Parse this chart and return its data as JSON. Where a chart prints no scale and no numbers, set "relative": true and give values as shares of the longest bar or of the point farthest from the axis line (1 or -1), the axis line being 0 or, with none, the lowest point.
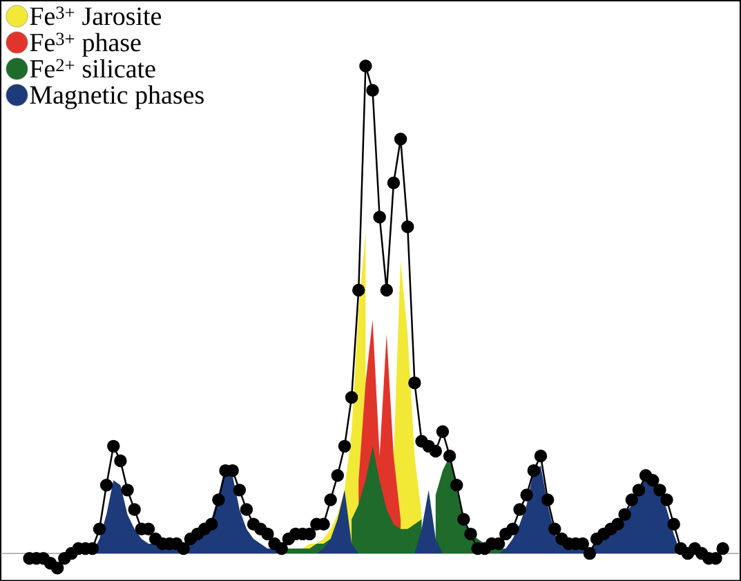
{
  "chart_data": {
    "type": "area",
    "relative": true,
    "legend": "top left",
    "categories": [
      null,
      null,
      null,
      null,
      null,
      null,
      null,
      null,
      null,
      null,
      null,
      null,
      null,
      null,
      null,
      null,
      null,
      null,
      null,
      null,
      null,
      null,
      null,
      null,
      null,
      null,
      null,
      null,
      null,
      null,
      null,
      null,
      null,
      null,
      null,
      null,
      null,
      null,
      null,
      null,
      null,
      null,
      null,
      null,
      null,
      null,
      null,
      null,
      null,
      null,
      null,
      null,
      null,
      null,
      null,
      null,
      null,
      null,
      null,
      null,
      null,
      null,
      null,
      null,
      null,
      null,
      null,
      null,
      null,
      null,
      null,
      null,
      null,
      null,
      null,
      null,
      null,
      null,
      null,
      null,
      null,
      null,
      null,
      null,
      null,
      null,
      null,
      null,
      null,
      null,
      null,
      null,
      null,
      null,
      null,
      null,
      null,
      null,
      null,
      null
    ],
    "series": [
      {
        "name": "Fe$^{3+}$ Jarosite",
        "color": "#f2e936",
        "values": [
          0,
          0,
          0,
          0,
          0,
          0,
          0,
          0,
          0,
          0,
          0,
          0,
          0,
          0,
          0,
          0,
          0,
          0,
          0,
          0,
          0,
          0,
          0,
          0,
          0,
          0,
          0,
          0,
          0,
          0,
          0,
          0,
          0,
          0,
          0,
          0,
          0,
          0.01,
          0.01,
          0.01,
          0.02,
          0.02,
          0.03,
          0.05,
          0.08,
          0.13,
          0.25,
          0.5,
          0.66,
          null,
          null,
          null,
          0.2,
          0.6,
          0.45,
          0.2,
          0.08,
          null,
          null,
          null,
          null,
          0,
          0,
          0,
          0,
          0,
          0,
          0,
          0,
          0,
          0,
          0,
          0,
          0,
          0,
          0,
          0,
          0,
          0,
          0,
          0,
          0,
          0,
          0,
          0,
          0,
          0,
          0,
          0,
          0,
          0,
          0,
          0,
          0,
          0,
          0,
          0,
          0,
          0,
          0
        ]
      },
      {
        "name": "Fe$^{3+}$ phase",
        "color": "#e1352b",
        "values": [
          0,
          0,
          0,
          0,
          0,
          0,
          0,
          0,
          0,
          0,
          0,
          0,
          0,
          0,
          0,
          0,
          0,
          0,
          0,
          0,
          0,
          0,
          0,
          0,
          0,
          0,
          0,
          0,
          0,
          0,
          0,
          0,
          0,
          0,
          0,
          0.01,
          0.01,
          0.01,
          0.01,
          0.01,
          0.01,
          null,
          null,
          null,
          null,
          null,
          null,
          0.15,
          0.35,
          0.48,
          0.2,
          0.45,
          0.2,
          0.07,
          null,
          null,
          null,
          null,
          0,
          0,
          0,
          0,
          0,
          0,
          0,
          0,
          0,
          0,
          0,
          0,
          0,
          0,
          0,
          0,
          0,
          0,
          0,
          0,
          0,
          0,
          0,
          0,
          0,
          0,
          0,
          0,
          0,
          0,
          0,
          0,
          0,
          0,
          0,
          0,
          0,
          0,
          0,
          0,
          0,
          0
        ]
      },
      {
        "name": "Fe$^{2+}$ silicate",
        "color": "#1e6b2c",
        "values": [
          0,
          0,
          0,
          0,
          0,
          0,
          0,
          0,
          0,
          0,
          0,
          0,
          0,
          0,
          0,
          0,
          0,
          0,
          0,
          0,
          0,
          0,
          0,
          0,
          0,
          0,
          0,
          0,
          0,
          0,
          0,
          0,
          0,
          0,
          0,
          0.01,
          0.01,
          0.01,
          0.01,
          0.01,
          0.01,
          0.02,
          0.02,
          0.03,
          null,
          null,
          0.07,
          0.1,
          0.15,
          0.22,
          0.15,
          0.09,
          0.06,
          0.05,
          0.05,
          0.06,
          0.07,
          null,
          0.12,
          0.17,
          0.2,
          0.13,
          0.07,
          0.04,
          0.03,
          0.02,
          0.02,
          0.01,
          0.01,
          0,
          0,
          0,
          0,
          0,
          0,
          0,
          0,
          0,
          0,
          0,
          0,
          0,
          0,
          0,
          0,
          0,
          0,
          0,
          0,
          0,
          0,
          0,
          0,
          0,
          0,
          0,
          0,
          0,
          0,
          0
        ]
      },
      {
        "name": "Magnetic phases",
        "color": "#1d3b7a",
        "values": [
          0,
          0,
          0,
          0,
          0,
          0,
          0,
          0,
          0,
          0,
          0.03,
          0.08,
          0.15,
          0.14,
          0.08,
          0.05,
          0.03,
          0.02,
          0.02,
          0.02,
          0.02,
          0.02,
          0.02,
          0.03,
          0.03,
          0.05,
          0.07,
          0.12,
          0.18,
          0.16,
          0.09,
          0.05,
          0.03,
          0.02,
          0.01,
          0.01,
          0,
          0,
          0,
          0,
          0,
          0,
          0.01,
          0.03,
          0.07,
          0.13,
          0.02,
          0,
          0,
          0,
          0,
          0,
          0,
          0,
          0,
          0,
          0.05,
          0.13,
          0.03,
          0,
          0,
          0,
          0,
          0,
          0,
          0,
          0,
          0,
          0.01,
          0.03,
          0.06,
          0.1,
          0.17,
          0.18,
          0.1,
          0.04,
          0.02,
          0.01,
          0.01,
          0.01,
          0.01,
          0.02,
          0.03,
          0.04,
          0.06,
          0.08,
          0.1,
          0.13,
          0.16,
          0.16,
          0.13,
          0.09,
          0.04,
          0,
          0,
          0,
          0,
          0,
          0,
          0
        ]
      },
      {
        "type": "line",
        "color": "#000000",
        "marker": "circle",
        "values": [
          -0.01,
          -0.01,
          -0.01,
          -0.02,
          -0.03,
          -0.01,
          0,
          0.01,
          0.01,
          0.01,
          0.05,
          0.14,
          0.22,
          0.19,
          0.13,
          0.09,
          0.05,
          0.05,
          0.03,
          0.02,
          0.02,
          0.02,
          0.01,
          0.03,
          0.04,
          0.05,
          0.06,
          0.11,
          0.17,
          0.17,
          0.13,
          0.09,
          0.06,
          0.05,
          0.04,
          0.02,
          0.01,
          0.03,
          0.04,
          0.04,
          0.04,
          0.06,
          0.06,
          0.11,
          0.16,
          0.22,
          0.32,
          0.54,
          1.0,
          0.95,
          0.69,
          0.54,
          0.76,
          0.85,
          0.67,
          0.35,
          0.23,
          0.22,
          0.21,
          0.25,
          0.2,
          0.14,
          0.07,
          0.04,
          0.01,
          0.01,
          0.02,
          0.02,
          0.04,
          0.05,
          0.09,
          0.12,
          0.17,
          0.2,
          0.11,
          0.05,
          0.03,
          0.02,
          0.02,
          0.02,
          0,
          0.03,
          0.04,
          0.05,
          0.06,
          0.08,
          0.11,
          0.13,
          0.16,
          0.15,
          0.13,
          0.11,
          0.06,
          0.01,
          0,
          0.01,
          0,
          -0.01,
          -0.01,
          0.01
        ]
      }
    ]
  }
}
